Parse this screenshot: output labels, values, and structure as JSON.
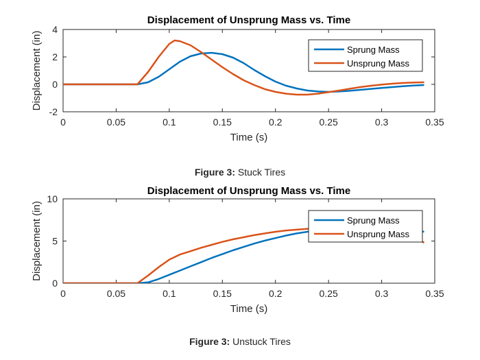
{
  "chart_data": [
    {
      "type": "line",
      "title": "Displacement of Unsprung Mass vs. Time",
      "xlabel": "Time (s)",
      "ylabel": "Displacement (in)",
      "xlim": [
        0,
        0.35
      ],
      "ylim": [
        -2,
        4
      ],
      "xticks": [
        0,
        0.05,
        0.1,
        0.15,
        0.2,
        0.25,
        0.3,
        0.35
      ],
      "xtick_labels": [
        "0",
        "0.05",
        "0.1",
        "0.15",
        "0.2",
        "0.25",
        "0.3",
        "0.35"
      ],
      "yticks": [
        -2,
        0,
        2,
        4
      ],
      "ytick_labels": [
        "-2",
        "0",
        "2",
        "4"
      ],
      "grid": false,
      "legend_position": "top-right",
      "caption_prefix": "Figure 3:",
      "caption_text": "Stuck Tires",
      "series": [
        {
          "name": "Sprung Mass",
          "color": "#0072BD",
          "x": [
            0,
            0.05,
            0.07,
            0.08,
            0.09,
            0.1,
            0.11,
            0.12,
            0.13,
            0.14,
            0.15,
            0.16,
            0.17,
            0.18,
            0.19,
            0.2,
            0.21,
            0.22,
            0.23,
            0.24,
            0.25,
            0.26,
            0.27,
            0.28,
            0.29,
            0.3,
            0.31,
            0.32,
            0.33,
            0.34
          ],
          "y": [
            0,
            0,
            0,
            0.15,
            0.55,
            1.1,
            1.65,
            2.05,
            2.25,
            2.3,
            2.2,
            1.95,
            1.55,
            1.05,
            0.6,
            0.2,
            -0.1,
            -0.3,
            -0.45,
            -0.52,
            -0.55,
            -0.52,
            -0.47,
            -0.4,
            -0.33,
            -0.26,
            -0.2,
            -0.14,
            -0.09,
            -0.05
          ]
        },
        {
          "name": "Unsprung Mass",
          "color": "#D95319",
          "x": [
            0,
            0.05,
            0.07,
            0.08,
            0.09,
            0.1,
            0.105,
            0.11,
            0.12,
            0.13,
            0.14,
            0.15,
            0.16,
            0.17,
            0.18,
            0.19,
            0.2,
            0.21,
            0.22,
            0.23,
            0.24,
            0.25,
            0.26,
            0.27,
            0.28,
            0.29,
            0.3,
            0.31,
            0.32,
            0.33,
            0.34
          ],
          "y": [
            0,
            0,
            0,
            0.9,
            2.0,
            2.95,
            3.2,
            3.15,
            2.85,
            2.35,
            1.8,
            1.25,
            0.75,
            0.3,
            -0.05,
            -0.35,
            -0.55,
            -0.68,
            -0.75,
            -0.75,
            -0.68,
            -0.57,
            -0.45,
            -0.32,
            -0.2,
            -0.1,
            -0.02,
            0.05,
            0.1,
            0.13,
            0.15
          ]
        }
      ]
    },
    {
      "type": "line",
      "title": "Displacement of Unsprung Mass vs. Time",
      "xlabel": "Time (s)",
      "ylabel": "Displacement (in)",
      "xlim": [
        0,
        0.35
      ],
      "ylim": [
        0,
        10
      ],
      "xticks": [
        0,
        0.05,
        0.1,
        0.15,
        0.2,
        0.25,
        0.3,
        0.35
      ],
      "xtick_labels": [
        "0",
        "0.05",
        "0.1",
        "0.15",
        "0.2",
        "0.25",
        "0.3",
        "0.35"
      ],
      "yticks": [
        0,
        5,
        10
      ],
      "ytick_labels": [
        "0",
        "5",
        "10"
      ],
      "grid": false,
      "legend_position": "top-right",
      "caption_prefix": "Figure 3:",
      "caption_text": "Unstuck Tires",
      "series": [
        {
          "name": "Sprung Mass",
          "color": "#0072BD",
          "x": [
            0,
            0.05,
            0.07,
            0.08,
            0.09,
            0.1,
            0.11,
            0.12,
            0.13,
            0.14,
            0.15,
            0.16,
            0.17,
            0.18,
            0.19,
            0.2,
            0.21,
            0.22,
            0.23,
            0.24,
            0.25,
            0.26,
            0.27,
            0.28,
            0.29,
            0.3,
            0.31,
            0.32,
            0.33,
            0.34
          ],
          "y": [
            0,
            0,
            0,
            0.1,
            0.5,
            1.0,
            1.5,
            2.0,
            2.5,
            3.0,
            3.45,
            3.9,
            4.3,
            4.7,
            5.05,
            5.35,
            5.65,
            5.9,
            6.1,
            6.3,
            6.45,
            6.55,
            6.6,
            6.65,
            6.65,
            6.6,
            6.55,
            6.45,
            6.3,
            6.1
          ]
        },
        {
          "name": "Unsprung Mass",
          "color": "#D95319",
          "x": [
            0,
            0.05,
            0.07,
            0.08,
            0.09,
            0.1,
            0.11,
            0.12,
            0.13,
            0.14,
            0.15,
            0.16,
            0.17,
            0.18,
            0.19,
            0.2,
            0.21,
            0.22,
            0.23,
            0.24,
            0.25,
            0.26,
            0.27,
            0.28,
            0.29,
            0.3,
            0.31,
            0.32,
            0.33,
            0.34
          ],
          "y": [
            0,
            0,
            0,
            0.9,
            1.9,
            2.8,
            3.4,
            3.8,
            4.2,
            4.55,
            4.9,
            5.2,
            5.45,
            5.7,
            5.9,
            6.1,
            6.25,
            6.35,
            6.45,
            6.5,
            6.55,
            6.55,
            6.5,
            6.45,
            6.35,
            6.25,
            6.05,
            5.85,
            5.55,
            4.8
          ]
        }
      ]
    }
  ]
}
